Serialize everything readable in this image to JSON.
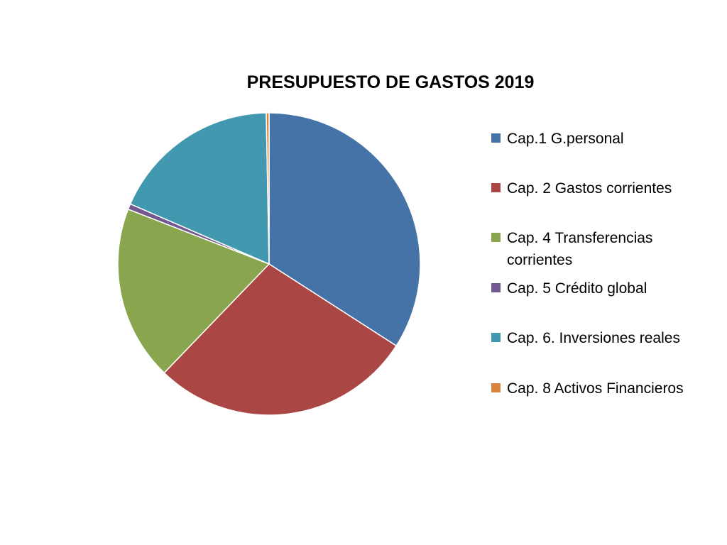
{
  "chart_data": {
    "type": "pie",
    "title": "PRESUPUESTO DE GASTOS 2019",
    "legend_position": "right",
    "categories": [
      "Cap.1 G.personal",
      "Cap. 2 Gastos corrientes",
      "Cap. 4 Transferencias corrientes",
      "Cap. 5 Crédito global",
      "Cap. 6. Inversiones reales",
      "Cap. 8 Activos Financieros"
    ],
    "values": [
      34.1,
      28.1,
      18.7,
      0.6,
      18.2,
      0.3
    ],
    "colors": [
      "#4572A7",
      "#AA4643",
      "#89A54E",
      "#71588F",
      "#4198AF",
      "#DB843D"
    ]
  }
}
